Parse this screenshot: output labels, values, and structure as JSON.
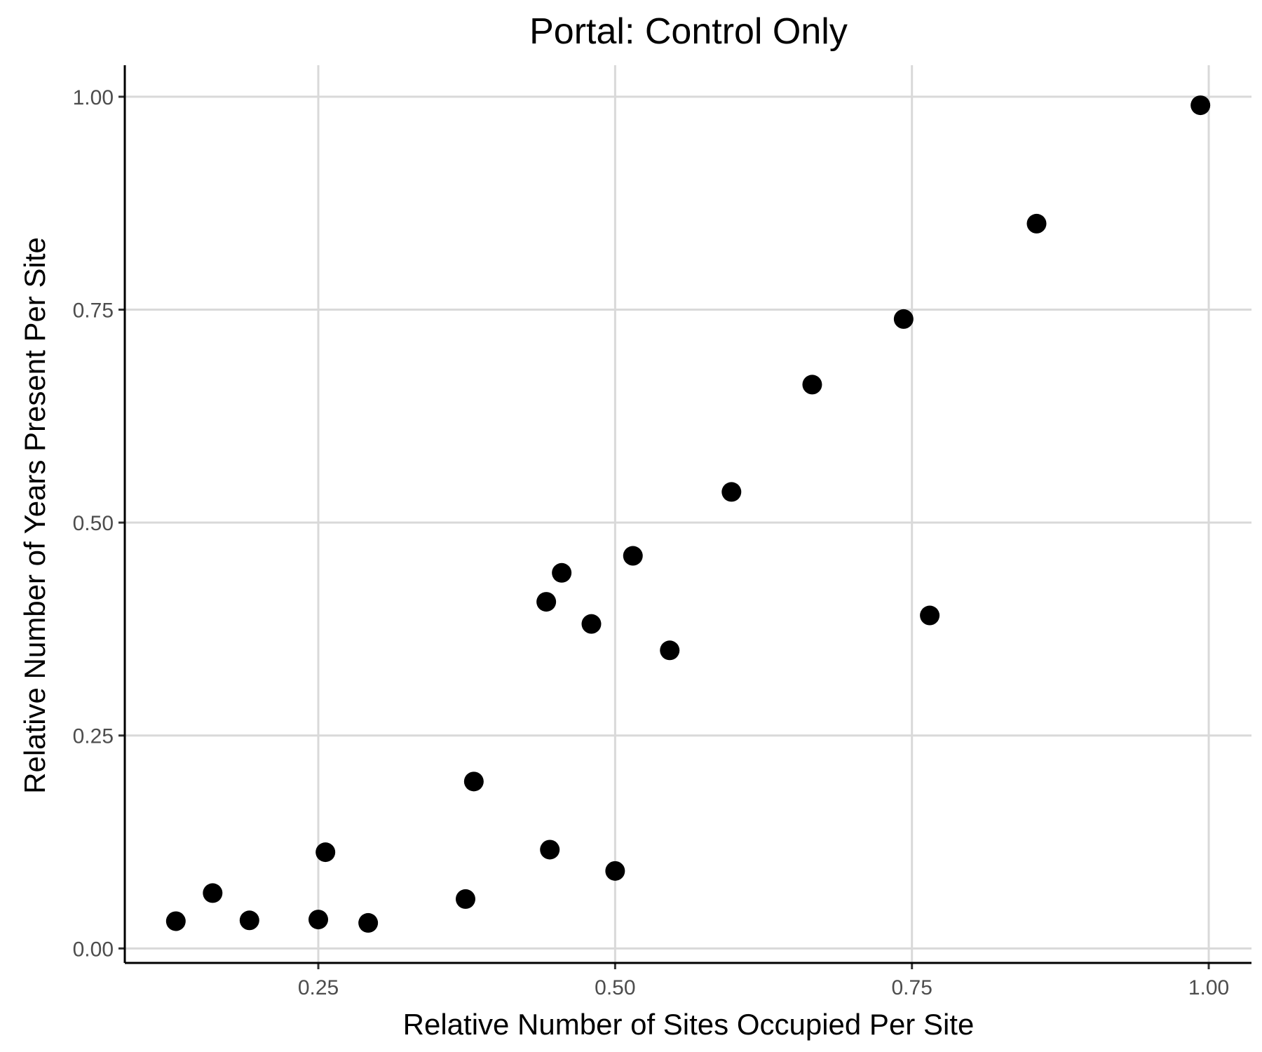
{
  "chart_data": {
    "type": "scatter",
    "title": "Portal: Control Only",
    "xlabel": "Relative Number of Sites Occupied Per Site",
    "ylabel": "Relative Number of Years Present Per Site",
    "xlim": [
      0.087,
      1.036
    ],
    "ylim": [
      -0.017,
      1.037
    ],
    "grid": true,
    "x_ticks": [
      0.25,
      0.5,
      0.75,
      1.0
    ],
    "x_tick_labels": [
      "0.25",
      "0.50",
      "0.75",
      "1.00"
    ],
    "y_ticks": [
      0.0,
      0.25,
      0.5,
      0.75,
      1.0
    ],
    "y_tick_labels": [
      "0.00",
      "0.25",
      "0.50",
      "0.75",
      "1.00"
    ],
    "point_color": "#000000",
    "series": [
      {
        "x": [
          0.13,
          0.161,
          0.192,
          0.25,
          0.292,
          0.256,
          0.374,
          0.381,
          0.445,
          0.5,
          0.442,
          0.455,
          0.48,
          0.515,
          0.546,
          0.598,
          0.666,
          0.743,
          0.765,
          0.855,
          0.993
        ],
        "y": [
          0.032,
          0.065,
          0.033,
          0.034,
          0.03,
          0.113,
          0.058,
          0.196,
          0.116,
          0.091,
          0.407,
          0.441,
          0.381,
          0.461,
          0.35,
          0.536,
          0.662,
          0.739,
          0.391,
          0.851,
          0.99
        ]
      }
    ]
  }
}
